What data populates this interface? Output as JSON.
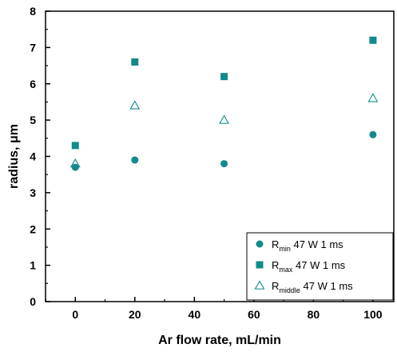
{
  "chart_data": {
    "type": "scatter",
    "xlabel": "Ar flow rate, mL/min",
    "ylabel": "radius, μm",
    "xlim": [
      -10,
      107
    ],
    "ylim": [
      0,
      8
    ],
    "xticks": [
      0,
      20,
      40,
      60,
      80,
      100
    ],
    "yticks": [
      0,
      1,
      2,
      3,
      4,
      5,
      6,
      7,
      8
    ],
    "grid": false,
    "legend_position": "bottom-right",
    "color": "#128a8a",
    "series": [
      {
        "name": "R_min 47 W 1 ms",
        "legend": {
          "base": "R",
          "sub": "min",
          "rest": " 47 W 1 ms"
        },
        "marker": "circle",
        "x": [
          0,
          20,
          50,
          100
        ],
        "y": [
          3.7,
          3.9,
          3.8,
          4.6
        ]
      },
      {
        "name": "R_max 47 W 1 ms",
        "legend": {
          "base": "R",
          "sub": "max",
          "rest": " 47 W 1 ms"
        },
        "marker": "square",
        "x": [
          0,
          20,
          50,
          100
        ],
        "y": [
          4.3,
          6.6,
          6.2,
          7.2
        ]
      },
      {
        "name": "R_middle 47 W 1 ms",
        "legend": {
          "base": "R",
          "sub": "middle",
          "rest": " 47 W 1 ms"
        },
        "marker": "triangle-open",
        "x": [
          0,
          20,
          50,
          100
        ],
        "y": [
          3.8,
          5.4,
          5.0,
          5.6
        ]
      }
    ]
  }
}
